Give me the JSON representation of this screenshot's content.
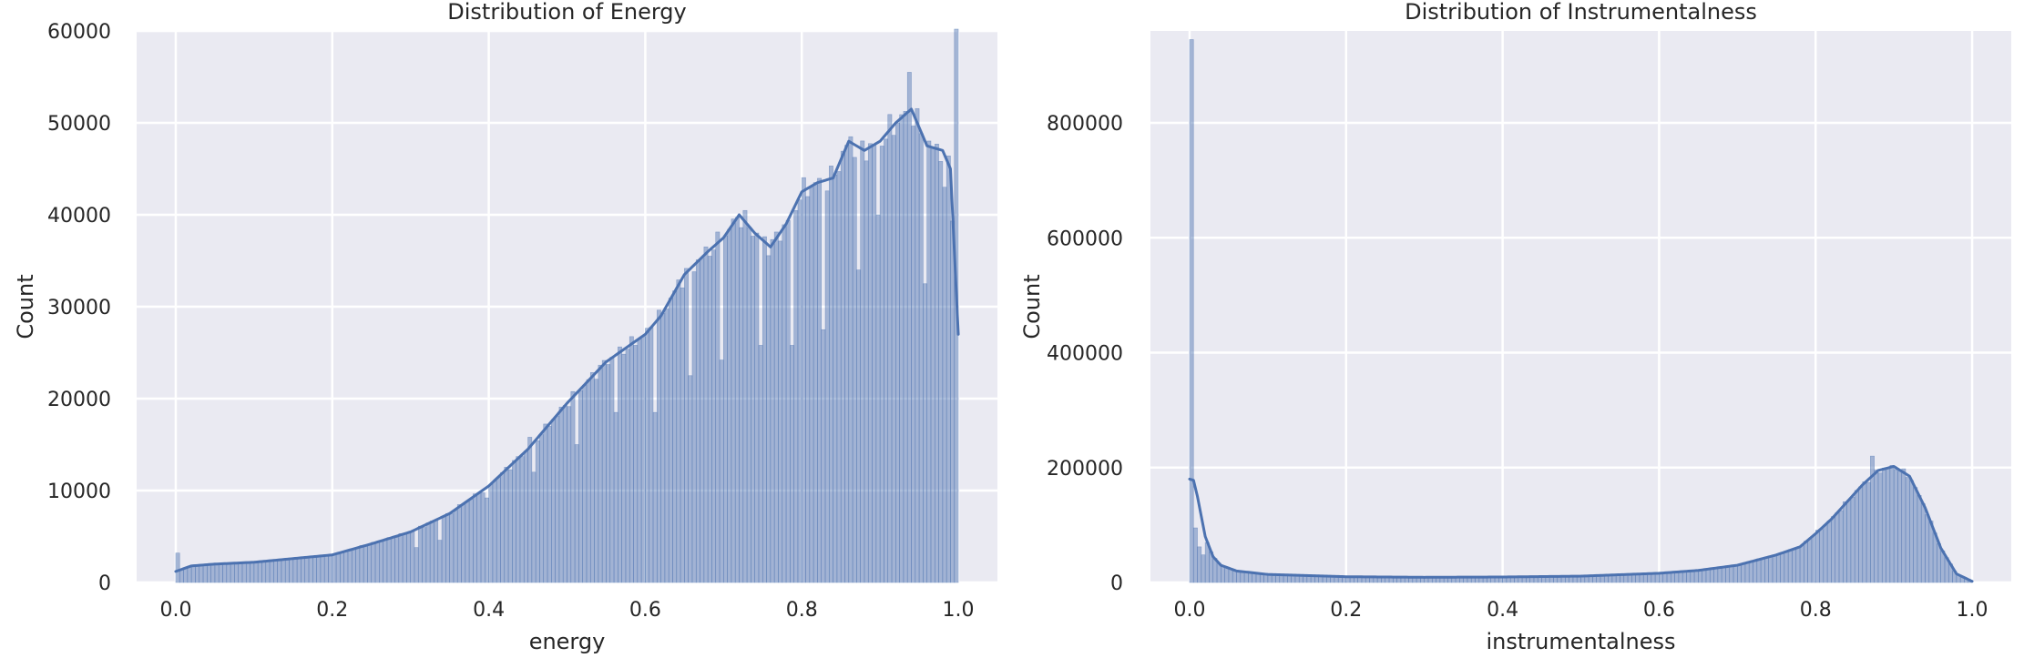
{
  "chart_data": [
    {
      "type": "histogram",
      "title": "Distribution of Energy",
      "xlabel": "energy",
      "ylabel": "Count",
      "xlim": [
        -0.05,
        1.05
      ],
      "ylim": [
        0,
        60000
      ],
      "xticks": [
        0.0,
        0.2,
        0.4,
        0.6,
        0.8,
        1.0
      ],
      "xtick_labels": [
        "0.0",
        "0.2",
        "0.4",
        "0.6",
        "0.8",
        "1.0"
      ],
      "yticks": [
        0,
        10000,
        20000,
        30000,
        40000,
        50000,
        60000
      ],
      "ytick_labels": [
        "0",
        "10000",
        "20000",
        "30000",
        "40000",
        "50000",
        "60000"
      ],
      "grid": true,
      "kde": true,
      "bin_range": [
        0,
        1
      ],
      "bin_count": 200,
      "density_curve": {
        "x": [
          0.0,
          0.02,
          0.05,
          0.1,
          0.15,
          0.2,
          0.25,
          0.3,
          0.35,
          0.4,
          0.45,
          0.5,
          0.55,
          0.6,
          0.62,
          0.65,
          0.68,
          0.7,
          0.72,
          0.74,
          0.76,
          0.78,
          0.8,
          0.82,
          0.84,
          0.86,
          0.88,
          0.9,
          0.92,
          0.94,
          0.96,
          0.98,
          0.99,
          1.0
        ],
        "y": [
          1200,
          1800,
          2000,
          2200,
          2600,
          3000,
          4200,
          5500,
          7500,
          10500,
          14500,
          19500,
          24000,
          27000,
          29000,
          33500,
          36000,
          37500,
          40000,
          38000,
          36500,
          39000,
          42500,
          43500,
          44000,
          48000,
          47000,
          48000,
          50000,
          51500,
          47500,
          47000,
          45000,
          27000
        ]
      },
      "spikes": [
        {
          "x": 0.0,
          "y": 3200
        },
        {
          "x": 0.345,
          "y": 7500
        },
        {
          "x": 0.45,
          "y": 15800
        },
        {
          "x": 0.61,
          "y": 28500
        },
        {
          "x": 0.935,
          "y": 55500
        },
        {
          "x": 0.995,
          "y": 60200
        }
      ],
      "dips": [
        {
          "x": 0.305,
          "y": 3800
        },
        {
          "x": 0.335,
          "y": 4600
        },
        {
          "x": 0.395,
          "y": 9200
        },
        {
          "x": 0.455,
          "y": 12000
        },
        {
          "x": 0.51,
          "y": 15000
        },
        {
          "x": 0.565,
          "y": 18500
        },
        {
          "x": 0.612,
          "y": 18500
        },
        {
          "x": 0.655,
          "y": 22500
        },
        {
          "x": 0.695,
          "y": 24200
        },
        {
          "x": 0.745,
          "y": 25800
        },
        {
          "x": 0.785,
          "y": 25800
        },
        {
          "x": 0.825,
          "y": 27500
        },
        {
          "x": 0.87,
          "y": 34000
        },
        {
          "x": 0.898,
          "y": 40000
        },
        {
          "x": 0.955,
          "y": 32500
        },
        {
          "x": 0.982,
          "y": 43000
        }
      ]
    },
    {
      "type": "histogram",
      "title": "Distribution of Instrumentalness",
      "xlabel": "instrumentalness",
      "ylabel": "Count",
      "xlim": [
        -0.05,
        1.05
      ],
      "ylim": [
        0,
        960000
      ],
      "xticks": [
        0.0,
        0.2,
        0.4,
        0.6,
        0.8,
        1.0
      ],
      "xtick_labels": [
        "0.0",
        "0.2",
        "0.4",
        "0.6",
        "0.8",
        "1.0"
      ],
      "yticks": [
        0,
        200000,
        400000,
        600000,
        800000
      ],
      "ytick_labels": [
        "0",
        "200000",
        "400000",
        "600000",
        "800000"
      ],
      "grid": true,
      "kde": true,
      "bin_range": [
        0,
        1
      ],
      "bin_count": 200,
      "density_curve": {
        "x": [
          0.0,
          0.005,
          0.01,
          0.02,
          0.03,
          0.04,
          0.06,
          0.1,
          0.2,
          0.3,
          0.4,
          0.5,
          0.6,
          0.65,
          0.7,
          0.75,
          0.78,
          0.8,
          0.82,
          0.84,
          0.86,
          0.88,
          0.9,
          0.92,
          0.94,
          0.96,
          0.98,
          1.0
        ],
        "y": [
          180000,
          178000,
          150000,
          80000,
          45000,
          30000,
          20000,
          14000,
          10000,
          9000,
          9500,
          11000,
          16000,
          21000,
          30000,
          48000,
          62000,
          85000,
          110000,
          140000,
          170000,
          195000,
          202000,
          185000,
          130000,
          60000,
          15000,
          2000
        ]
      },
      "spikes": [
        {
          "x": 0.0,
          "y": 945000
        },
        {
          "x": 0.007,
          "y": 95000
        },
        {
          "x": 0.012,
          "y": 62000
        },
        {
          "x": 0.018,
          "y": 48000
        },
        {
          "x": 0.872,
          "y": 220000
        }
      ],
      "dips": []
    }
  ]
}
